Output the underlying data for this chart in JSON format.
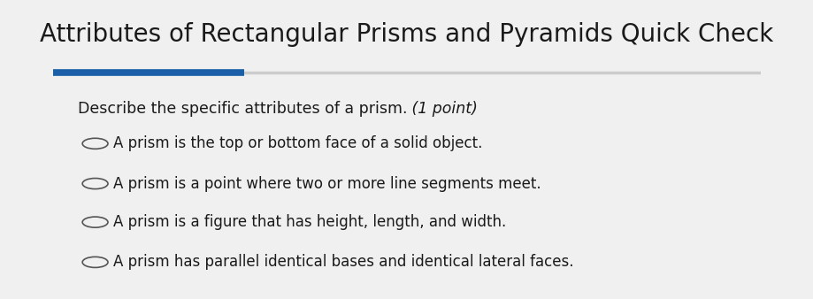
{
  "title": "Attributes of Rectangular Prisms and Pyramids Quick Check",
  "title_fontsize": 20,
  "title_color": "#1a1a1a",
  "background_color": "#f0f0f0",
  "content_background": "#f5f5f5",
  "question": "Describe the specific attributes of a prism.",
  "point_label": " (1 point)",
  "options": [
    "A prism is the top or bottom face of a solid object.",
    "A prism is a point where two or more line segments meet.",
    "A prism is a figure that has height, length, and width.",
    "A prism has parallel identical bases and identical lateral faces."
  ],
  "question_fontsize": 12.5,
  "option_fontsize": 12,
  "bar_color": "#1a5fa8",
  "bar_color2": "#cccccc",
  "text_color": "#1a1a1a"
}
